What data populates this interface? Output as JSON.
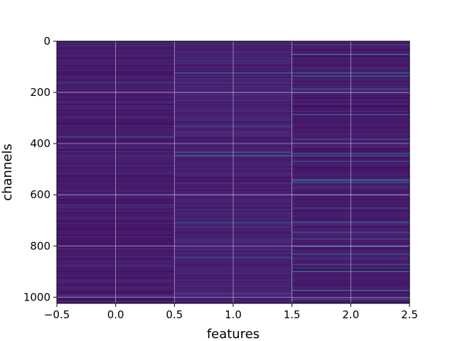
{
  "chart_data": {
    "type": "heatmap",
    "title": "",
    "xlabel": "features",
    "ylabel": "channels",
    "xlim": [
      -0.5,
      2.5
    ],
    "ylim": [
      1024,
      0
    ],
    "y_inverted": true,
    "grid": true,
    "colormap": "viridis",
    "x_ticks": [
      {
        "value": -0.5,
        "label": "−0.5"
      },
      {
        "value": 0.0,
        "label": "0.0"
      },
      {
        "value": 0.5,
        "label": "0.5"
      },
      {
        "value": 1.0,
        "label": "1.0"
      },
      {
        "value": 1.5,
        "label": "1.5"
      },
      {
        "value": 2.0,
        "label": "2.0"
      },
      {
        "value": 2.5,
        "label": "2.5"
      }
    ],
    "y_ticks": [
      {
        "value": 0,
        "label": "0"
      },
      {
        "value": 200,
        "label": "200"
      },
      {
        "value": 400,
        "label": "400"
      },
      {
        "value": 600,
        "label": "600"
      },
      {
        "value": 800,
        "label": "800"
      },
      {
        "value": 1000,
        "label": "1000"
      }
    ],
    "columns": [
      {
        "feature": 0,
        "base_value": 0.1,
        "bright_rows": [
          {
            "channel": 160,
            "value": 0.28
          },
          {
            "channel": 372,
            "value": 0.3
          },
          {
            "channel": 994,
            "value": 0.3
          }
        ]
      },
      {
        "feature": 1,
        "base_value": 0.12,
        "bright_rows": [
          {
            "channel": 122,
            "value": 0.45
          },
          {
            "channel": 330,
            "value": 0.3
          },
          {
            "channel": 432,
            "value": 0.42
          },
          {
            "channel": 446,
            "value": 0.55
          },
          {
            "channel": 706,
            "value": 0.42
          },
          {
            "channel": 724,
            "value": 0.3
          },
          {
            "channel": 842,
            "value": 0.3
          },
          {
            "channel": 984,
            "value": 0.3
          }
        ]
      },
      {
        "feature": 2,
        "base_value": 0.1,
        "bright_rows": [
          {
            "channel": 12,
            "value": 0.3
          },
          {
            "channel": 50,
            "value": 0.55
          },
          {
            "channel": 123,
            "value": 0.5
          },
          {
            "channel": 134,
            "value": 0.45
          },
          {
            "channel": 185,
            "value": 0.45
          },
          {
            "channel": 285,
            "value": 0.42
          },
          {
            "channel": 382,
            "value": 0.35
          },
          {
            "channel": 436,
            "value": 0.45
          },
          {
            "channel": 446,
            "value": 0.4
          },
          {
            "channel": 468,
            "value": 0.35
          },
          {
            "channel": 540,
            "value": 0.6
          },
          {
            "channel": 548,
            "value": 0.45
          },
          {
            "channel": 598,
            "value": 0.35
          },
          {
            "channel": 650,
            "value": 0.3
          },
          {
            "channel": 706,
            "value": 0.45
          },
          {
            "channel": 744,
            "value": 0.35
          },
          {
            "channel": 770,
            "value": 0.3
          },
          {
            "channel": 800,
            "value": 0.5
          },
          {
            "channel": 830,
            "value": 0.45
          },
          {
            "channel": 870,
            "value": 0.35
          },
          {
            "channel": 898,
            "value": 0.62
          },
          {
            "channel": 972,
            "value": 0.58
          },
          {
            "channel": 1006,
            "value": 0.4
          }
        ]
      }
    ]
  }
}
